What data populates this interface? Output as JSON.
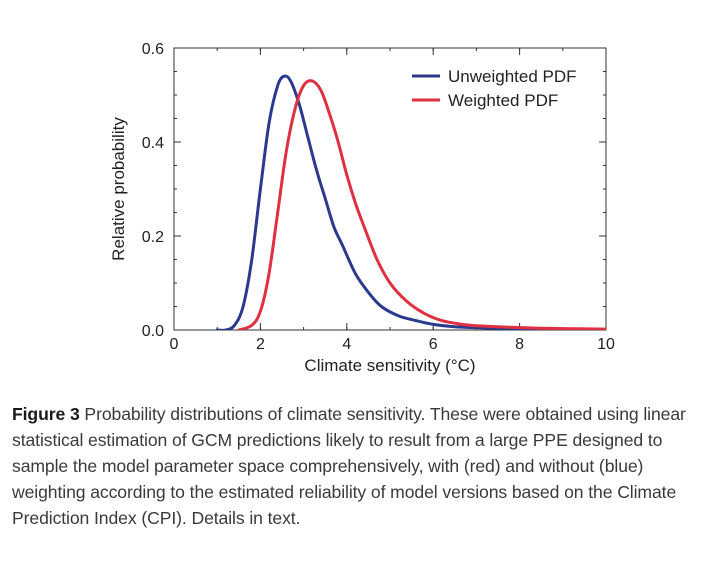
{
  "chart_data": {
    "type": "line",
    "xlabel": "Climate sensitivity (°C)",
    "ylabel": "Relative probability",
    "xlim": [
      0,
      10
    ],
    "ylim": [
      0,
      0.6
    ],
    "x_ticks": [
      0,
      2,
      4,
      6,
      8,
      10
    ],
    "x_tick_labels": [
      "0",
      "2",
      "4",
      "6",
      "8",
      "10"
    ],
    "y_ticks": [
      0.0,
      0.2,
      0.4,
      0.6
    ],
    "y_tick_labels": [
      "0.0",
      "0.2",
      "0.4",
      "0.6"
    ],
    "legend_position": "top-right",
    "grid": false,
    "series": [
      {
        "name": "Unweighted PDF",
        "color": "#2b3a8f",
        "x": [
          1.0,
          1.2,
          1.4,
          1.6,
          1.8,
          2.0,
          2.2,
          2.4,
          2.55,
          2.7,
          2.9,
          3.1,
          3.3,
          3.5,
          3.7,
          3.9,
          4.2,
          4.5,
          4.8,
          5.2,
          5.6,
          6.0,
          6.5,
          7.0,
          8.0,
          9.0,
          10.0
        ],
        "y": [
          0.0,
          0.0,
          0.01,
          0.05,
          0.15,
          0.3,
          0.44,
          0.52,
          0.54,
          0.53,
          0.48,
          0.41,
          0.34,
          0.28,
          0.22,
          0.18,
          0.12,
          0.08,
          0.05,
          0.03,
          0.02,
          0.012,
          0.007,
          0.005,
          0.003,
          0.002,
          0.001
        ]
      },
      {
        "name": "Weighted PDF",
        "color": "#e03040",
        "x": [
          1.5,
          1.8,
          2.0,
          2.2,
          2.4,
          2.6,
          2.8,
          3.0,
          3.2,
          3.4,
          3.6,
          3.8,
          4.0,
          4.2,
          4.4,
          4.7,
          5.0,
          5.4,
          5.8,
          6.2,
          6.6,
          7.0,
          8.0,
          9.0,
          10.0
        ],
        "y": [
          0.0,
          0.01,
          0.04,
          0.12,
          0.25,
          0.38,
          0.47,
          0.52,
          0.53,
          0.51,
          0.46,
          0.4,
          0.33,
          0.27,
          0.22,
          0.15,
          0.1,
          0.06,
          0.035,
          0.02,
          0.013,
          0.009,
          0.005,
          0.003,
          0.002
        ]
      }
    ]
  },
  "caption": {
    "label": "Figure 3",
    "text": " Probability distributions of climate sensitivity. These were obtained using linear statistical estimation of GCM predictions likely to result from a large PPE designed to sample the model parameter space comprehensively, with (red) and without (blue) weighting according to the estimated reliability of model versions based on the Climate Prediction Index (CPI). Details in text."
  }
}
